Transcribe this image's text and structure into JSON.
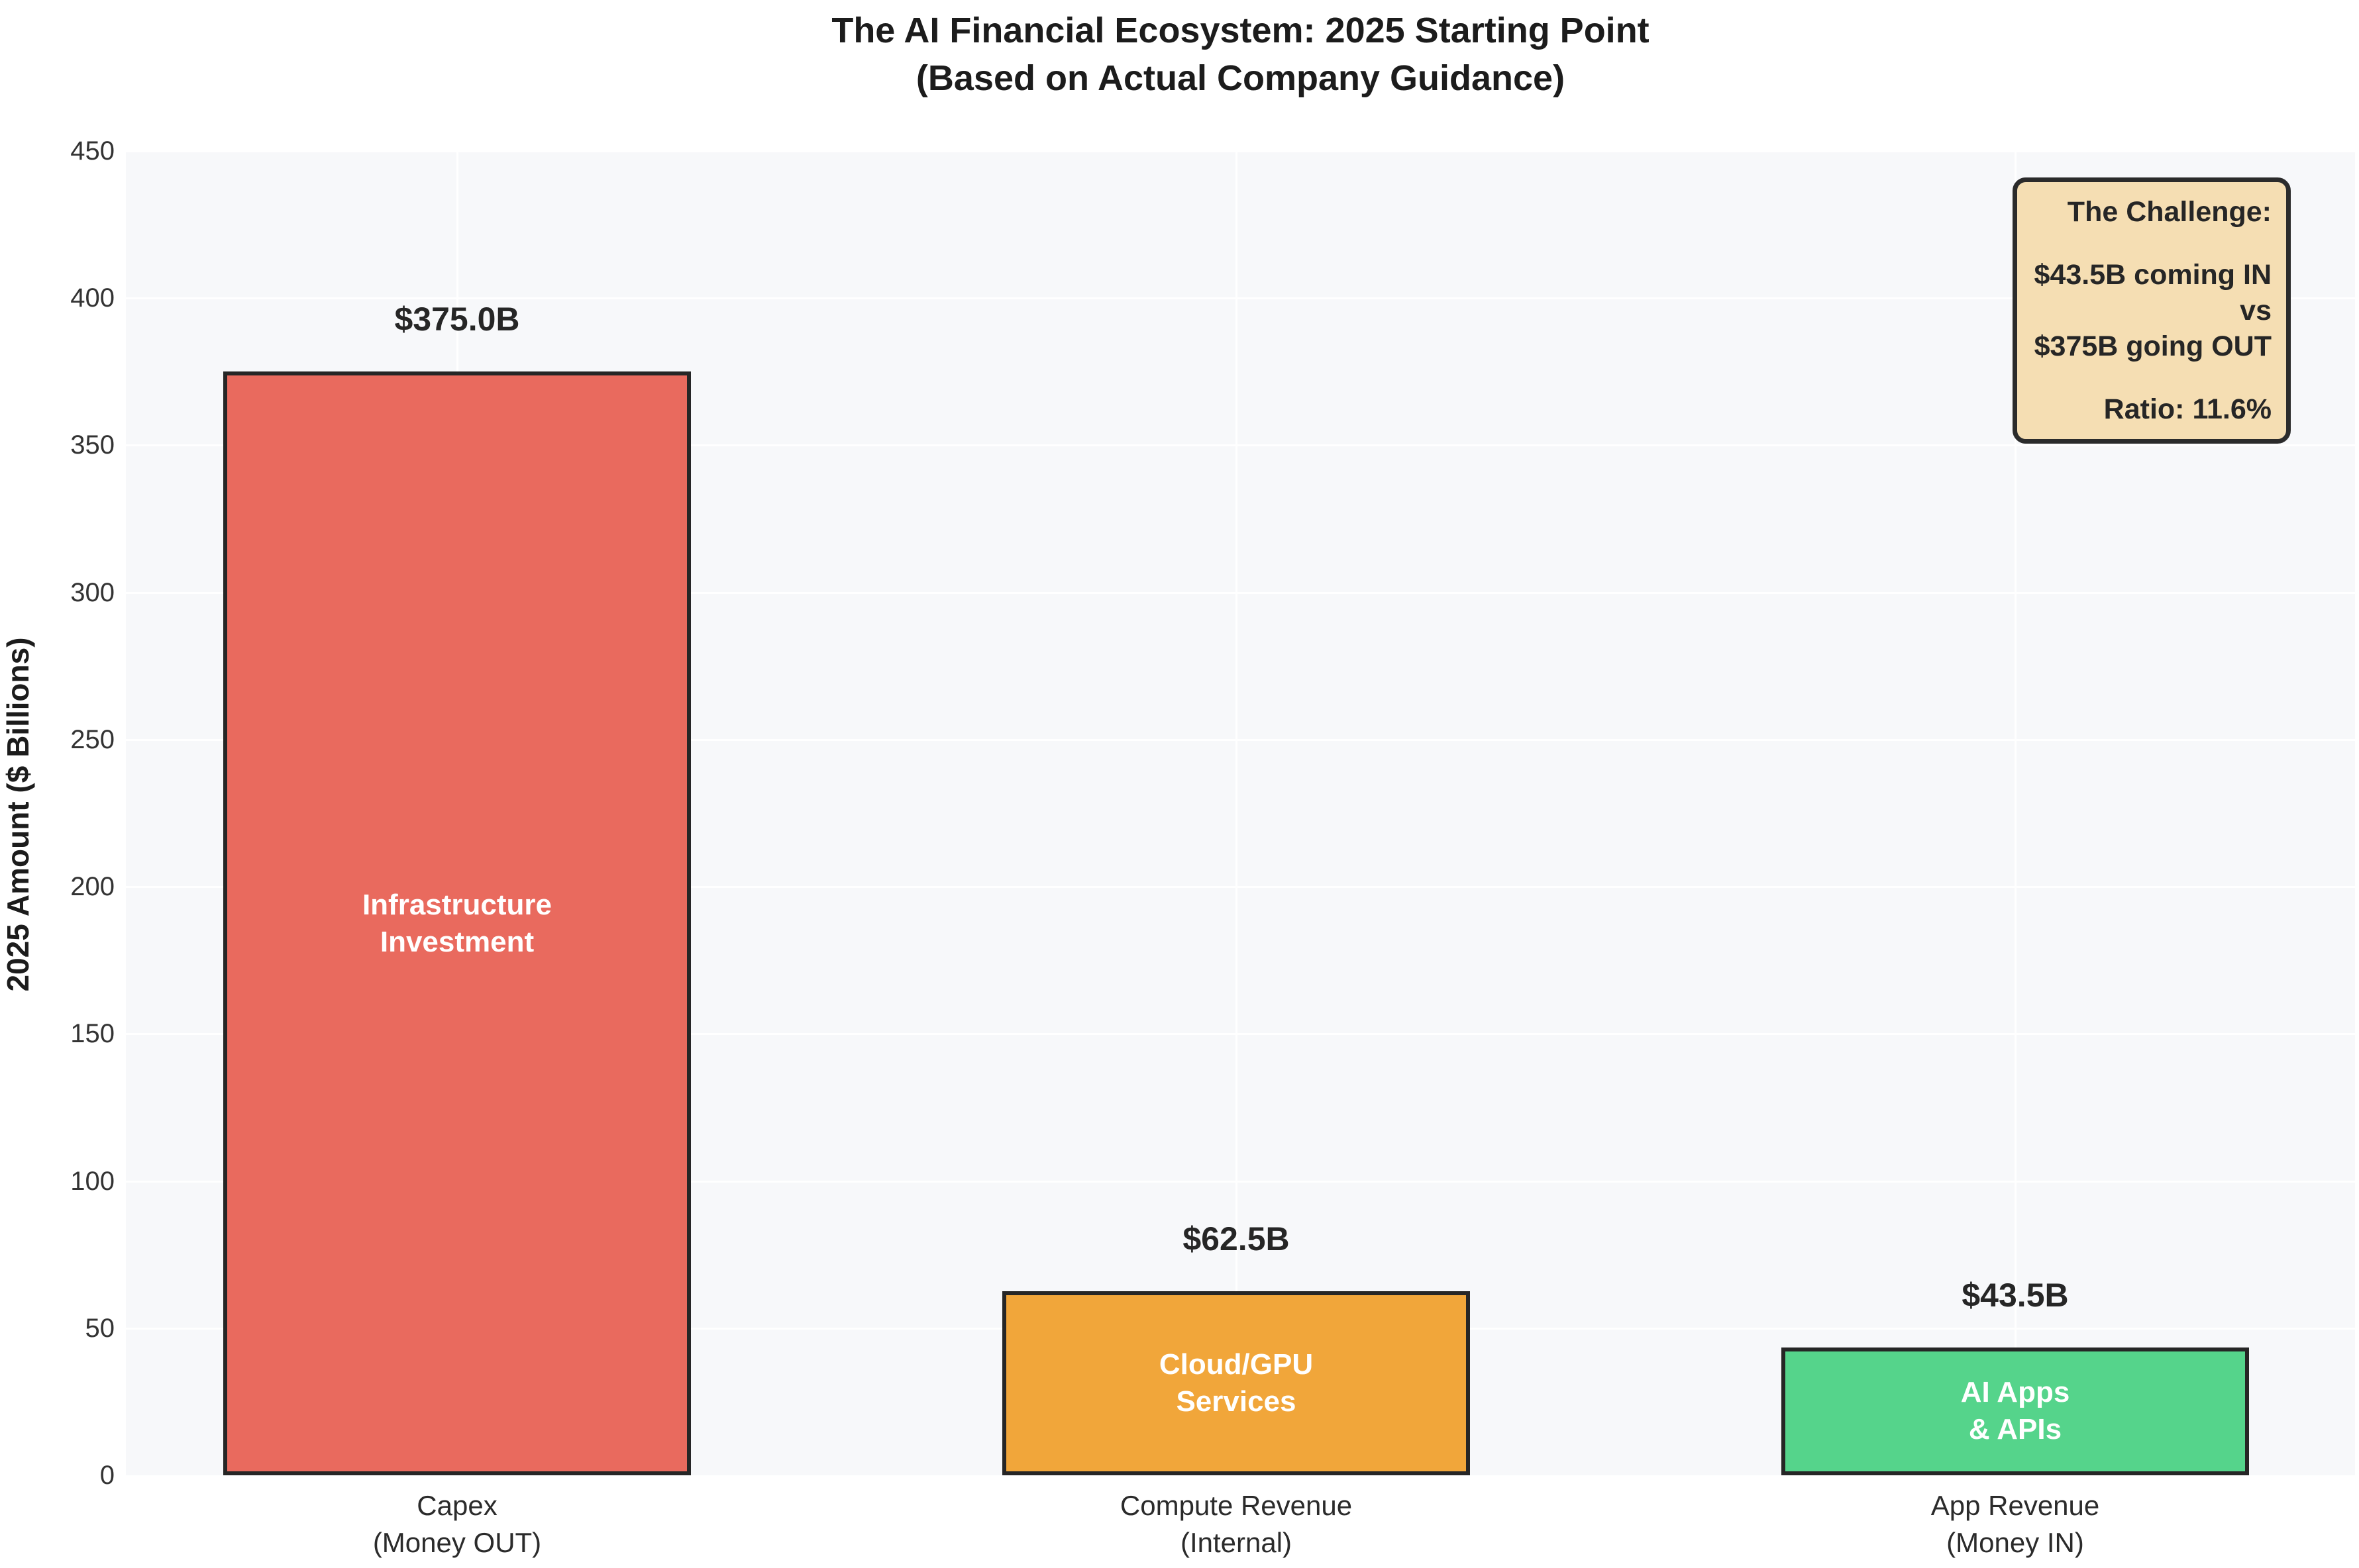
{
  "title": {
    "line1": "The AI Financial Ecosystem: 2025 Starting Point",
    "line2": "(Based on Actual Company Guidance)"
  },
  "y_axis": {
    "label": "2025 Amount ($ Billions)"
  },
  "chart_data": {
    "type": "bar",
    "title": "The AI Financial Ecosystem: 2025 Starting Point (Based on Actual Company Guidance)",
    "xlabel": "",
    "ylabel": "2025 Amount ($ Billions)",
    "ylim": [
      0,
      450
    ],
    "yticks": [
      0,
      50,
      100,
      150,
      200,
      250,
      300,
      350,
      400,
      450
    ],
    "grid": true,
    "legend": "none",
    "categories": [
      "Capex (Money OUT)",
      "Compute Revenue (Internal)",
      "App Revenue (Money IN)"
    ],
    "category_lines": [
      [
        "Capex",
        "(Money OUT)"
      ],
      [
        "Compute Revenue",
        "(Internal)"
      ],
      [
        "App Revenue",
        "(Money IN)"
      ]
    ],
    "values": [
      375.0,
      62.5,
      43.5
    ],
    "value_labels": [
      "$375.0B",
      "$62.5B",
      "$43.5B"
    ],
    "bar_inner_lines": [
      [
        "Infrastructure",
        "Investment"
      ],
      [
        "Cloud/GPU",
        "Services"
      ],
      [
        "AI Apps",
        "& APIs"
      ]
    ],
    "bar_colors": [
      "#e96a5e",
      "#f1a63a",
      "#55d48b"
    ],
    "bar_edge_color": "#262626",
    "plot_background": "#f7f8fa",
    "gridline_color": "#ffffff"
  },
  "annotation": {
    "heading": "The Challenge:",
    "lines": [
      "$43.5B coming IN",
      "vs",
      "$375B going OUT"
    ],
    "ratio_line": "Ratio: 11.6%",
    "background": "#f5deb3",
    "border_color": "#2b2b2b"
  }
}
